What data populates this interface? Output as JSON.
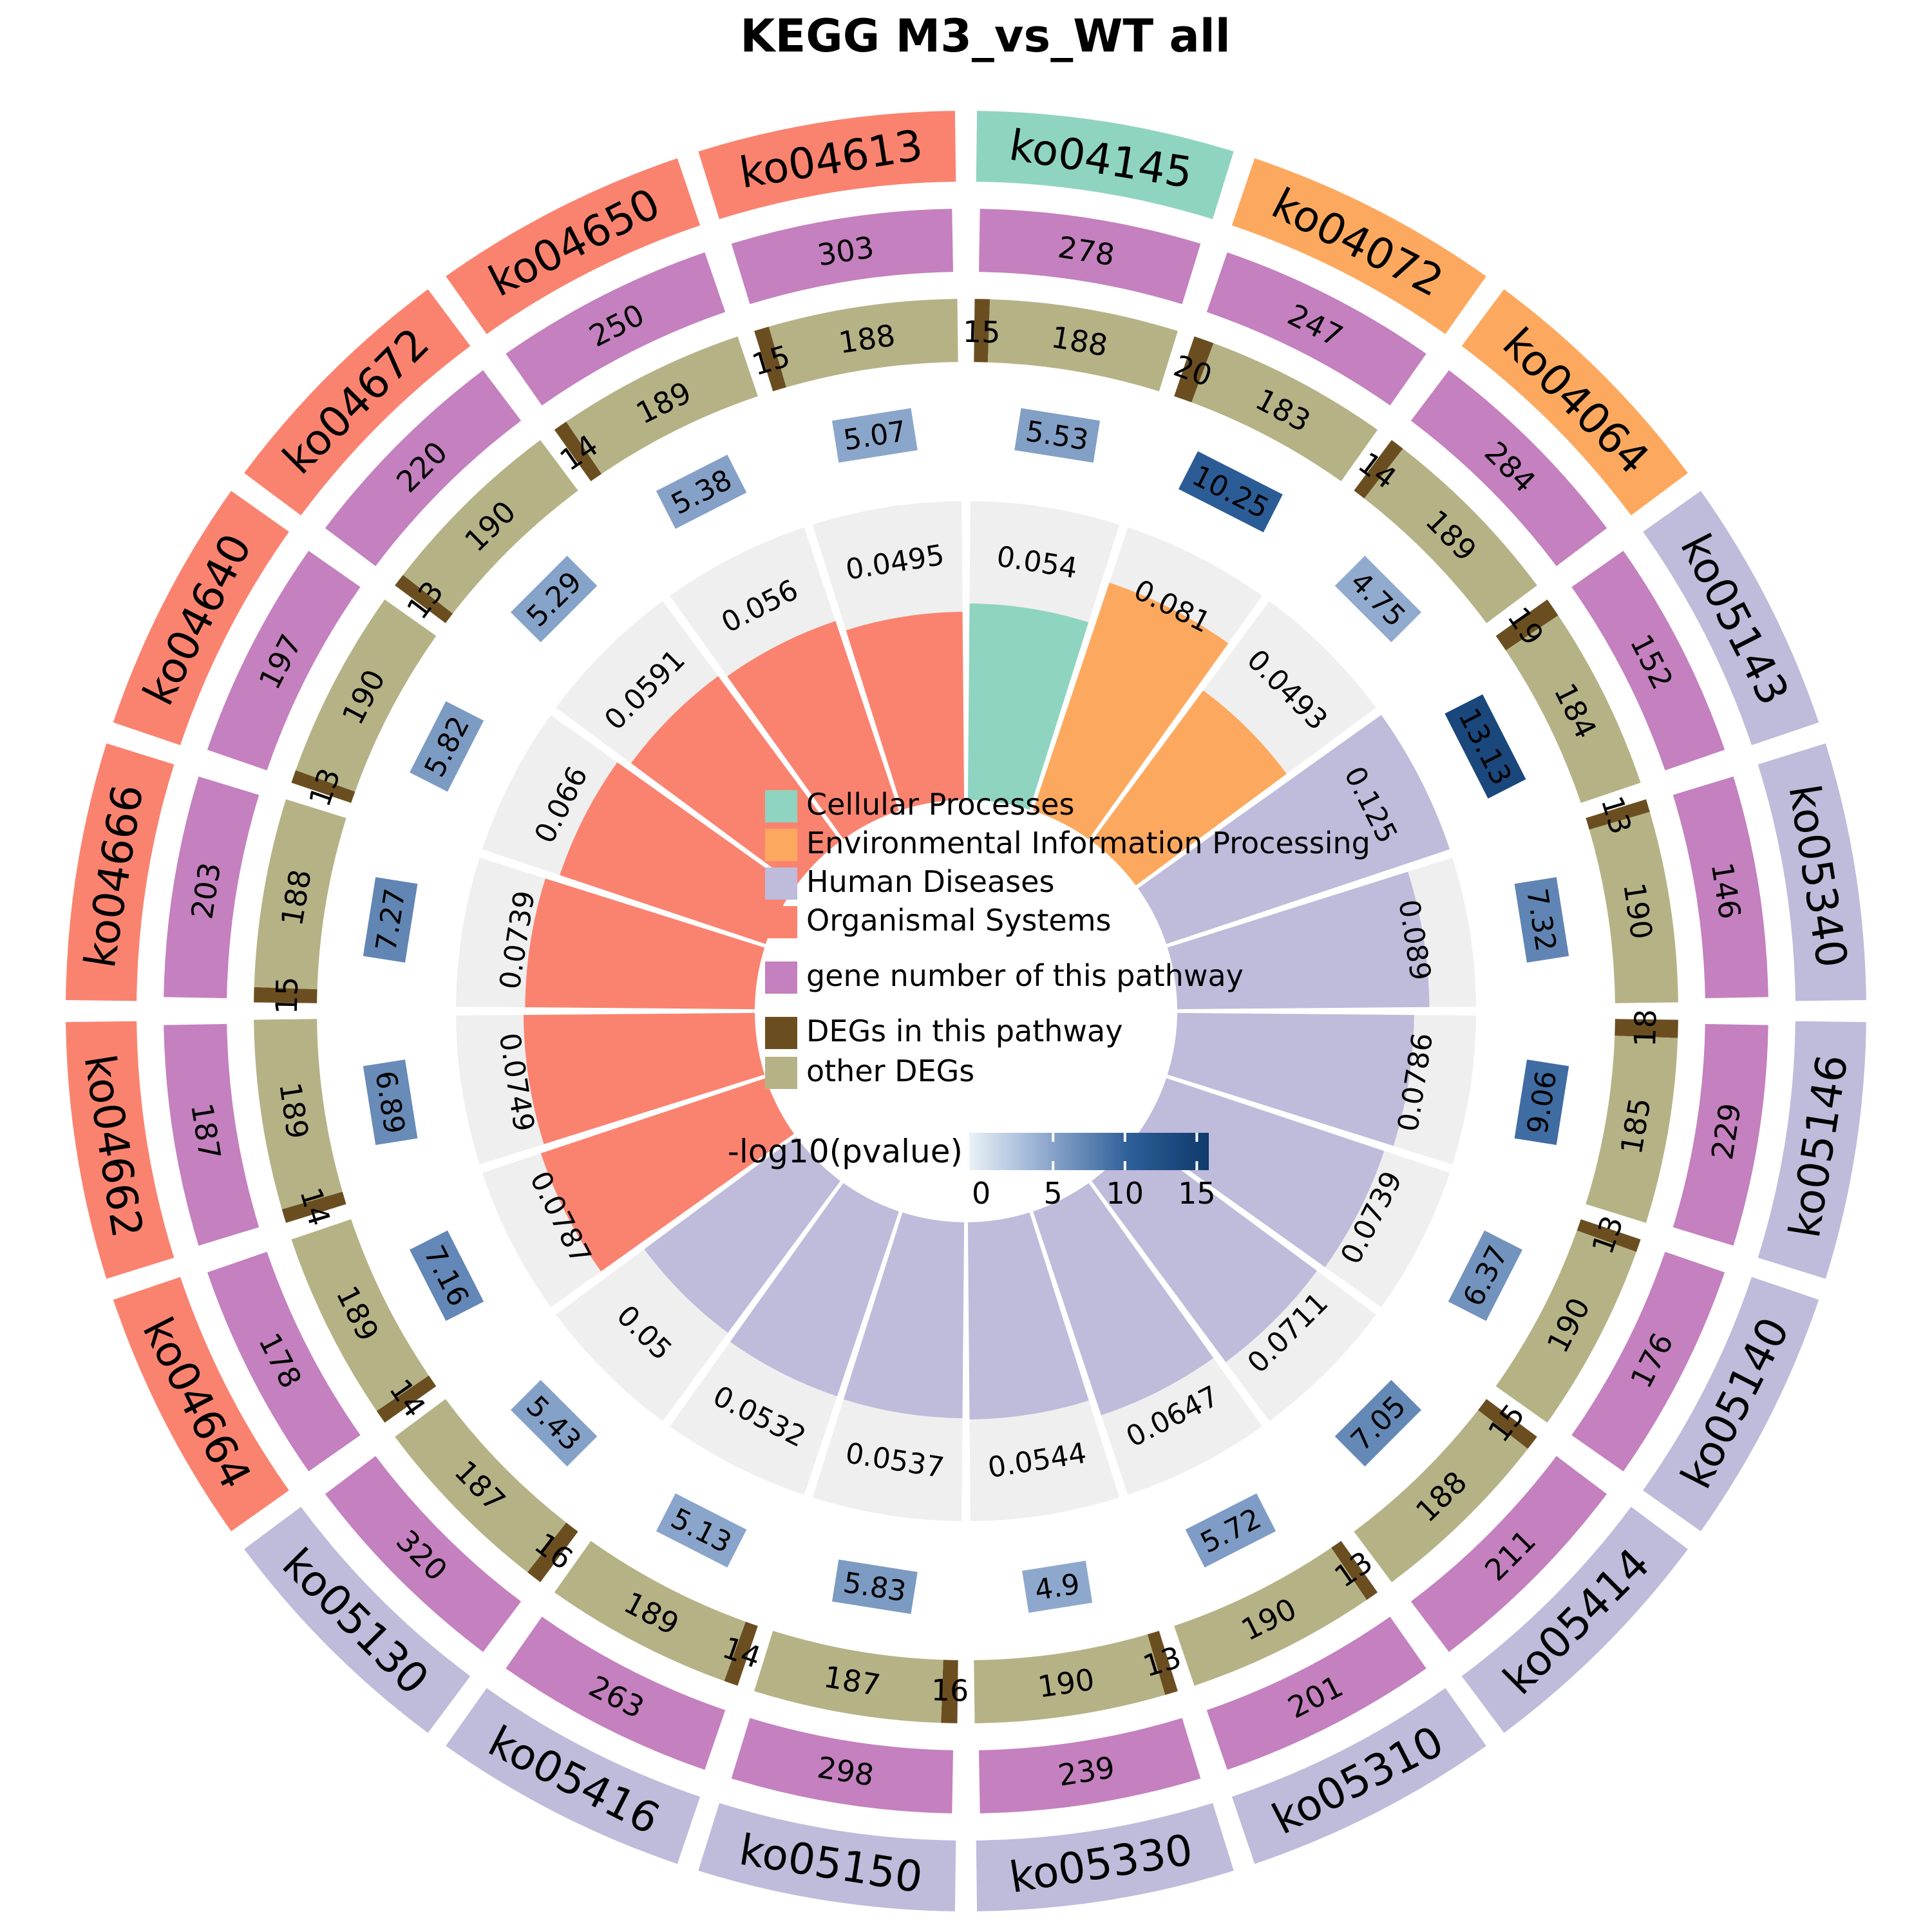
{
  "title": "KEGG M3_vs_WT all",
  "legend": {
    "categories": [
      {
        "label": "Cellular Processes",
        "color": "#8FD4C1"
      },
      {
        "label": "Environmental Information Processing",
        "color": "#FCA95F"
      },
      {
        "label": "Human Diseases",
        "color": "#BFBBDB"
      },
      {
        "label": "Organismal Systems",
        "color": "#FA8370"
      }
    ],
    "ring_items": [
      {
        "label": "gene number of this pathway",
        "color": "#C480BF"
      },
      {
        "label": "DEGs in this pathway",
        "color": "#6B4E20"
      },
      {
        "label": "other DEGs",
        "color": "#B5B286"
      }
    ],
    "colorbar": {
      "label": "-log10(pvalue)",
      "ticks": [
        "0",
        "5",
        "10",
        "15"
      ],
      "min": 0,
      "max": 15
    }
  },
  "chart_data": {
    "type": "circular_enrichment_rings",
    "description": "KEGG enrichment circos plot. Rings from outside in: pathway id (colored by category), gene number of pathway (magenta bar), DEGs in pathway (dark brown) + other DEGs (olive) bar, -log10(pvalue) box (blue gradient), inner wedge = rich factor (DEGs/gene number) on gray background.",
    "start_angle_deg": 0,
    "sector_span_deg": 18,
    "total_other_plus_deg": 203,
    "rich_factor_max": 0.125,
    "background_color": "#EFEFEF",
    "pvalue_color_stops": [
      {
        "value": 0,
        "color": "#EAF1F8"
      },
      {
        "value": 5,
        "color": "#8CA7CC"
      },
      {
        "value": 10,
        "color": "#2D5E98"
      },
      {
        "value": 15,
        "color": "#0F3A6C"
      }
    ],
    "sectors": [
      {
        "id": "ko04145",
        "category": "Cellular Processes",
        "gene_number": 278,
        "degs_in_pathway": 15,
        "other_degs": 188,
        "neg_log10_pvalue": 5.53,
        "rich_factor": 0.054
      },
      {
        "id": "ko04072",
        "category": "Environmental Information Processing",
        "gene_number": 247,
        "degs_in_pathway": 20,
        "other_degs": 183,
        "neg_log10_pvalue": 10.25,
        "rich_factor": 0.081
      },
      {
        "id": "ko04064",
        "category": "Environmental Information Processing",
        "gene_number": 284,
        "degs_in_pathway": 14,
        "other_degs": 189,
        "neg_log10_pvalue": 4.75,
        "rich_factor": 0.0493
      },
      {
        "id": "ko05143",
        "category": "Human Diseases",
        "gene_number": 152,
        "degs_in_pathway": 19,
        "other_degs": 184,
        "neg_log10_pvalue": 13.13,
        "rich_factor": 0.125
      },
      {
        "id": "ko05340",
        "category": "Human Diseases",
        "gene_number": 146,
        "degs_in_pathway": 13,
        "other_degs": 190,
        "neg_log10_pvalue": 7.32,
        "rich_factor": 0.089
      },
      {
        "id": "ko05146",
        "category": "Human Diseases",
        "gene_number": 229,
        "degs_in_pathway": 18,
        "other_degs": 185,
        "neg_log10_pvalue": 9.06,
        "rich_factor": 0.0786
      },
      {
        "id": "ko05140",
        "category": "Human Diseases",
        "gene_number": 176,
        "degs_in_pathway": 13,
        "other_degs": 190,
        "neg_log10_pvalue": 6.37,
        "rich_factor": 0.0739
      },
      {
        "id": "ko05414",
        "category": "Human Diseases",
        "gene_number": 211,
        "degs_in_pathway": 15,
        "other_degs": 188,
        "neg_log10_pvalue": 7.05,
        "rich_factor": 0.0711
      },
      {
        "id": "ko05310",
        "category": "Human Diseases",
        "gene_number": 201,
        "degs_in_pathway": 13,
        "other_degs": 190,
        "neg_log10_pvalue": 5.72,
        "rich_factor": 0.0647
      },
      {
        "id": "ko05330",
        "category": "Human Diseases",
        "gene_number": 239,
        "degs_in_pathway": 13,
        "other_degs": 190,
        "neg_log10_pvalue": 4.9,
        "rich_factor": 0.0544
      },
      {
        "id": "ko05150",
        "category": "Human Diseases",
        "gene_number": 298,
        "degs_in_pathway": 16,
        "other_degs": 187,
        "neg_log10_pvalue": 5.83,
        "rich_factor": 0.0537
      },
      {
        "id": "ko05416",
        "category": "Human Diseases",
        "gene_number": 263,
        "degs_in_pathway": 14,
        "other_degs": 189,
        "neg_log10_pvalue": 5.13,
        "rich_factor": 0.0532
      },
      {
        "id": "ko05130",
        "category": "Human Diseases",
        "gene_number": 320,
        "degs_in_pathway": 16,
        "other_degs": 187,
        "neg_log10_pvalue": 5.43,
        "rich_factor": 0.05
      },
      {
        "id": "ko04664",
        "category": "Organismal Systems",
        "gene_number": 178,
        "degs_in_pathway": 14,
        "other_degs": 189,
        "neg_log10_pvalue": 7.16,
        "rich_factor": 0.0787
      },
      {
        "id": "ko04662",
        "category": "Organismal Systems",
        "gene_number": 187,
        "degs_in_pathway": 14,
        "other_degs": 189,
        "neg_log10_pvalue": 6.89,
        "rich_factor": 0.0749
      },
      {
        "id": "ko04666",
        "category": "Organismal Systems",
        "gene_number": 203,
        "degs_in_pathway": 15,
        "other_degs": 188,
        "neg_log10_pvalue": 7.27,
        "rich_factor": 0.0739
      },
      {
        "id": "ko04640",
        "category": "Organismal Systems",
        "gene_number": 197,
        "degs_in_pathway": 13,
        "other_degs": 190,
        "neg_log10_pvalue": 5.82,
        "rich_factor": 0.066
      },
      {
        "id": "ko04672",
        "category": "Organismal Systems",
        "gene_number": 220,
        "degs_in_pathway": 13,
        "other_degs": 190,
        "neg_log10_pvalue": 5.29,
        "rich_factor": 0.0591
      },
      {
        "id": "ko04650",
        "category": "Organismal Systems",
        "gene_number": 250,
        "degs_in_pathway": 14,
        "other_degs": 189,
        "neg_log10_pvalue": 5.38,
        "rich_factor": 0.056
      },
      {
        "id": "ko04613",
        "category": "Organismal Systems",
        "gene_number": 303,
        "degs_in_pathway": 15,
        "other_degs": 188,
        "neg_log10_pvalue": 5.07,
        "rich_factor": 0.0495
      }
    ]
  }
}
